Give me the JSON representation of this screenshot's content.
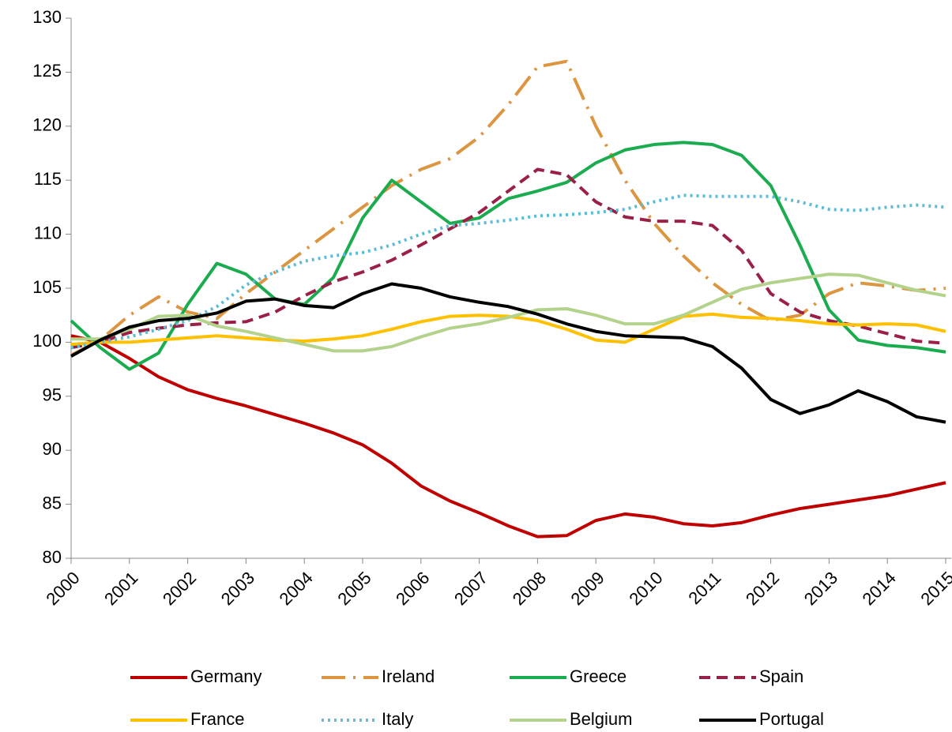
{
  "chart_data": {
    "type": "line",
    "x": [
      2000,
      2000.5,
      2001,
      2001.5,
      2002,
      2002.5,
      2003,
      2003.5,
      2004,
      2004.5,
      2005,
      2005.5,
      2006,
      2006.5,
      2007,
      2007.5,
      2008,
      2008.5,
      2009,
      2009.5,
      2010,
      2010.5,
      2011,
      2011.5,
      2012,
      2012.5,
      2013,
      2013.5,
      2014,
      2014.5,
      2015
    ],
    "xlim": [
      2000,
      2015.1
    ],
    "xticks": [
      2000,
      2001,
      2002,
      2003,
      2004,
      2005,
      2006,
      2007,
      2008,
      2009,
      2010,
      2011,
      2012,
      2013,
      2014,
      2015
    ],
    "ylim": [
      80,
      130
    ],
    "yticks": [
      80,
      85,
      90,
      95,
      100,
      105,
      110,
      115,
      120,
      125,
      130
    ],
    "grid": false,
    "legend": "bottom",
    "series": [
      {
        "name": "Germany",
        "color": "#c00000",
        "style": "solid",
        "values": [
          100.6,
          100,
          98.5,
          96.8,
          95.6,
          94.8,
          94.1,
          93.3,
          92.5,
          91.6,
          90.5,
          88.8,
          86.7,
          85.3,
          84.2,
          83,
          82,
          82.1,
          83.5,
          84.1,
          83.8,
          83.2,
          83,
          83.3,
          84,
          84.6,
          85,
          85.4,
          85.8,
          86.4,
          87
        ]
      },
      {
        "name": "Ireland",
        "color": "#dc9540",
        "style": "dash-dot",
        "values": [
          98.8,
          100.2,
          102.5,
          104.2,
          102.8,
          102.2,
          104.5,
          106.5,
          108.5,
          110.5,
          112.5,
          114.5,
          116,
          117,
          119,
          122,
          125.5,
          126,
          120,
          115,
          111,
          108,
          105.5,
          103.5,
          102,
          102.5,
          104.5,
          105.5,
          105.2,
          104.8,
          105
        ]
      },
      {
        "name": "Greece",
        "color": "#1aac4e",
        "style": "solid",
        "values": [
          102,
          99.5,
          97.5,
          99,
          103.5,
          107.3,
          106.3,
          104,
          103.5,
          106,
          111.5,
          115,
          113,
          111,
          111.5,
          113.3,
          114,
          114.8,
          116.6,
          117.8,
          118.3,
          118.5,
          118.3,
          117.3,
          114.5,
          109,
          103,
          100.2,
          99.7,
          99.5,
          99.1
        ]
      },
      {
        "name": "Spain",
        "color": "#9b2045",
        "style": "dash",
        "values": [
          99.5,
          100,
          100.9,
          101.3,
          101.6,
          101.8,
          101.9,
          102.8,
          104.3,
          105.6,
          106.5,
          107.6,
          109,
          110.5,
          112,
          114,
          116,
          115.5,
          113,
          111.6,
          111.2,
          111.2,
          110.8,
          108.5,
          104.5,
          102.8,
          102,
          101.5,
          100.8,
          100.1,
          99.9
        ]
      },
      {
        "name": "France",
        "color": "#ffc000",
        "style": "solid",
        "values": [
          99.8,
          100,
          100,
          100.2,
          100.4,
          100.6,
          100.4,
          100.2,
          100.1,
          100.3,
          100.6,
          101.2,
          101.9,
          102.4,
          102.5,
          102.4,
          102,
          101.2,
          100.2,
          100,
          101.2,
          102.4,
          102.6,
          102.3,
          102.2,
          102,
          101.7,
          101.6,
          101.7,
          101.6,
          101
        ]
      },
      {
        "name": "Italy",
        "color": "#5bbcd6",
        "style": "dot",
        "values": [
          99.5,
          100,
          100.5,
          101.2,
          102,
          103.3,
          105.3,
          106.5,
          107.5,
          108,
          108.3,
          109,
          110,
          110.8,
          111,
          111.3,
          111.7,
          111.8,
          112,
          112.3,
          113,
          113.6,
          113.5,
          113.5,
          113.5,
          113,
          112.3,
          112.2,
          112.5,
          112.7,
          112.5
        ]
      },
      {
        "name": "Belgium",
        "color": "#b3d28c",
        "style": "solid",
        "values": [
          100.3,
          100.3,
          101.2,
          102.4,
          102.5,
          101.5,
          101,
          100.4,
          99.8,
          99.2,
          99.2,
          99.6,
          100.5,
          101.3,
          101.7,
          102.3,
          103,
          103.1,
          102.5,
          101.7,
          101.7,
          102.5,
          103.7,
          104.9,
          105.5,
          105.9,
          106.3,
          106.2,
          105.5,
          104.8,
          104.3
        ]
      },
      {
        "name": "Portugal",
        "color": "#000000",
        "style": "solid",
        "values": [
          98.7,
          100.2,
          101.4,
          102,
          102.2,
          102.7,
          103.8,
          104,
          103.4,
          103.2,
          104.5,
          105.4,
          105,
          104.2,
          103.7,
          103.3,
          102.6,
          101.7,
          101,
          100.6,
          100.5,
          100.4,
          99.6,
          97.6,
          94.7,
          93.4,
          94.2,
          95.5,
          94.5,
          93.1,
          92.6
        ]
      }
    ]
  }
}
